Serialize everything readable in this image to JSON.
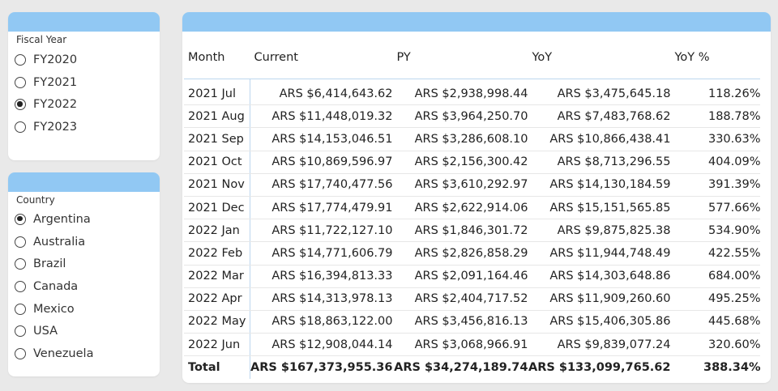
{
  "fiscal_year_slicer": {
    "title": "Fiscal Year",
    "options": [
      {
        "label": "FY2020",
        "selected": false
      },
      {
        "label": "FY2021",
        "selected": false
      },
      {
        "label": "FY2022",
        "selected": true
      },
      {
        "label": "FY2023",
        "selected": false
      }
    ]
  },
  "country_slicer": {
    "title": "Country",
    "options": [
      {
        "label": "Argentina",
        "selected": true
      },
      {
        "label": "Australia",
        "selected": false
      },
      {
        "label": "Brazil",
        "selected": false
      },
      {
        "label": "Canada",
        "selected": false
      },
      {
        "label": "Mexico",
        "selected": false
      },
      {
        "label": "USA",
        "selected": false
      },
      {
        "label": "Venezuela",
        "selected": false
      }
    ]
  },
  "matrix": {
    "columns": [
      "Month",
      "Current",
      "PY",
      "YoY",
      "YoY %"
    ],
    "rows": [
      [
        "2021 Jul",
        "ARS $6,414,643.62",
        "ARS $2,938,998.44",
        "ARS $3,475,645.18",
        "118.26%"
      ],
      [
        "2021 Aug",
        "ARS $11,448,019.32",
        "ARS $3,964,250.70",
        "ARS $7,483,768.62",
        "188.78%"
      ],
      [
        "2021 Sep",
        "ARS $14,153,046.51",
        "ARS $3,286,608.10",
        "ARS $10,866,438.41",
        "330.63%"
      ],
      [
        "2021 Oct",
        "ARS $10,869,596.97",
        "ARS $2,156,300.42",
        "ARS $8,713,296.55",
        "404.09%"
      ],
      [
        "2021 Nov",
        "ARS $17,740,477.56",
        "ARS $3,610,292.97",
        "ARS $14,130,184.59",
        "391.39%"
      ],
      [
        "2021 Dec",
        "ARS $17,774,479.91",
        "ARS $2,622,914.06",
        "ARS $15,151,565.85",
        "577.66%"
      ],
      [
        "2022 Jan",
        "ARS $11,722,127.10",
        "ARS $1,846,301.72",
        "ARS $9,875,825.38",
        "534.90%"
      ],
      [
        "2022 Feb",
        "ARS $14,771,606.79",
        "ARS $2,826,858.29",
        "ARS $11,944,748.49",
        "422.55%"
      ],
      [
        "2022 Mar",
        "ARS $16,394,813.33",
        "ARS $2,091,164.46",
        "ARS $14,303,648.86",
        "684.00%"
      ],
      [
        "2022 Apr",
        "ARS $14,313,978.13",
        "ARS $2,404,717.52",
        "ARS $11,909,260.60",
        "495.25%"
      ],
      [
        "2022 May",
        "ARS $18,863,122.00",
        "ARS $3,456,816.13",
        "ARS $15,406,305.86",
        "445.68%"
      ],
      [
        "2022 Jun",
        "ARS $12,908,044.14",
        "ARS $3,068,966.91",
        "ARS $9,839,077.24",
        "320.60%"
      ]
    ],
    "total": [
      "Total",
      "ARS $167,373,955.36",
      "ARS $34,274,189.74",
      "ARS $133,099,765.62",
      "388.34%"
    ]
  },
  "colors": {
    "header_bar": "#91c8f3",
    "background": "#e9e9e9",
    "divider": "#bcd7ee"
  }
}
